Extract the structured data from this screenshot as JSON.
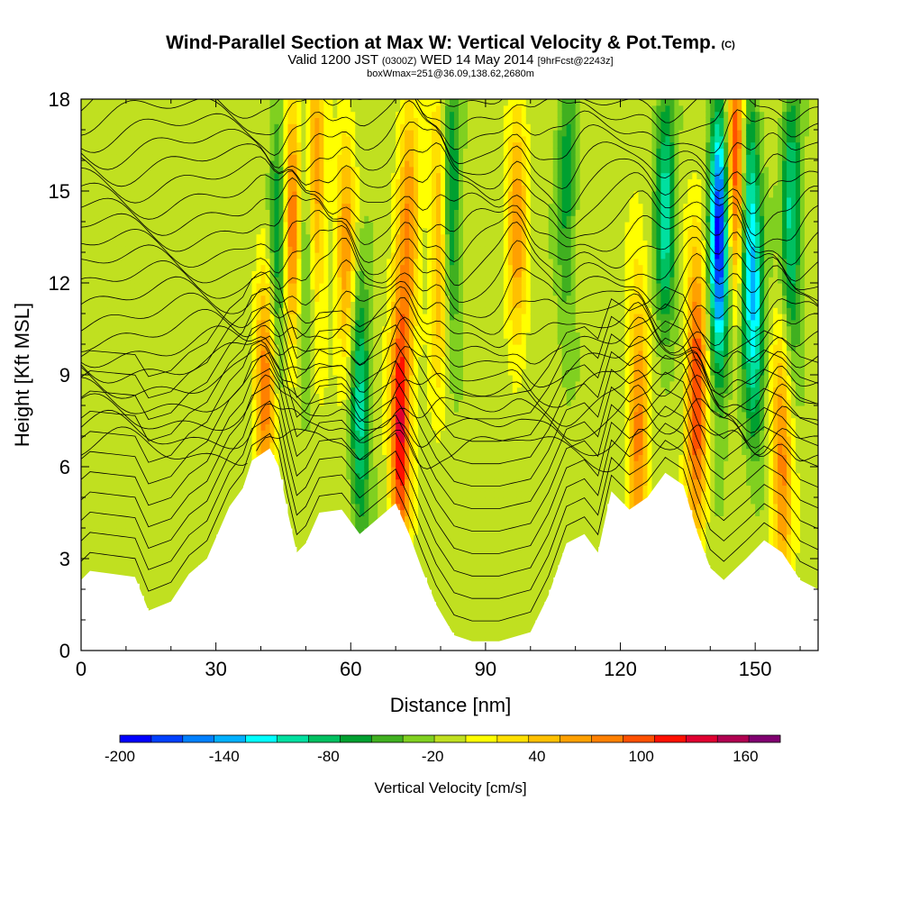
{
  "title": {
    "main": "Wind-Parallel Section at Max W: Vertical Velocity & Pot.Temp.",
    "main_suffix": "(C)",
    "valid_prefix": "Valid 1200 JST",
    "valid_zulu": "(0300Z)",
    "valid_date": "WED 14 May 2014",
    "valid_fcst": "[9hrFcst@2243z]",
    "box_info": "boxWmax=251@36.09,138.62,2680m"
  },
  "chart_data": {
    "type": "heatmap",
    "xlabel": "Distance [nm]",
    "ylabel": "Height [Kft MSL]",
    "xlim": [
      0,
      164
    ],
    "ylim": [
      0,
      18
    ],
    "xticks": [
      0,
      30,
      60,
      90,
      120,
      150
    ],
    "yticks": [
      0,
      3,
      6,
      9,
      12,
      15,
      18
    ],
    "colorbar": {
      "label": "Vertical Velocity [cm/s]",
      "range": [
        -200,
        180
      ],
      "step": 20,
      "tick_labels": [
        "-200",
        "-140",
        "-80",
        "-20",
        "40",
        "100",
        "160"
      ],
      "tick_values": [
        -200,
        -140,
        -80,
        -20,
        40,
        100,
        160
      ],
      "colors": [
        "#0000ff",
        "#0040ff",
        "#0080ff",
        "#00b0ff",
        "#00ffff",
        "#00e0a0",
        "#00c060",
        "#00a030",
        "#40b020",
        "#80d020",
        "#c0e020",
        "#ffff00",
        "#ffe000",
        "#ffc000",
        "#ffa000",
        "#ff8000",
        "#ff5000",
        "#ff1000",
        "#e00030",
        "#b00050",
        "#800070"
      ]
    },
    "terrain_height_kft": [
      {
        "x": 0,
        "h": 2.3
      },
      {
        "x": 2,
        "h": 2.6
      },
      {
        "x": 12,
        "h": 2.4
      },
      {
        "x": 15,
        "h": 1.3
      },
      {
        "x": 20,
        "h": 1.6
      },
      {
        "x": 24,
        "h": 2.5
      },
      {
        "x": 28,
        "h": 3.0
      },
      {
        "x": 33,
        "h": 4.7
      },
      {
        "x": 36,
        "h": 5.3
      },
      {
        "x": 38,
        "h": 6.2
      },
      {
        "x": 42,
        "h": 6.6
      },
      {
        "x": 44,
        "h": 6.0
      },
      {
        "x": 46,
        "h": 4.5
      },
      {
        "x": 48,
        "h": 3.2
      },
      {
        "x": 50,
        "h": 3.5
      },
      {
        "x": 53,
        "h": 4.5
      },
      {
        "x": 58,
        "h": 4.6
      },
      {
        "x": 62,
        "h": 3.8
      },
      {
        "x": 66,
        "h": 4.3
      },
      {
        "x": 70,
        "h": 4.8
      },
      {
        "x": 73,
        "h": 3.8
      },
      {
        "x": 76,
        "h": 2.6
      },
      {
        "x": 79,
        "h": 1.5
      },
      {
        "x": 83,
        "h": 0.5
      },
      {
        "x": 87,
        "h": 0.3
      },
      {
        "x": 93,
        "h": 0.3
      },
      {
        "x": 100,
        "h": 0.6
      },
      {
        "x": 104,
        "h": 1.8
      },
      {
        "x": 108,
        "h": 3.5
      },
      {
        "x": 112,
        "h": 3.8
      },
      {
        "x": 115,
        "h": 3.2
      },
      {
        "x": 118,
        "h": 5.2
      },
      {
        "x": 122,
        "h": 4.6
      },
      {
        "x": 126,
        "h": 5.0
      },
      {
        "x": 130,
        "h": 5.8
      },
      {
        "x": 134,
        "h": 5.4
      },
      {
        "x": 137,
        "h": 3.9
      },
      {
        "x": 140,
        "h": 2.7
      },
      {
        "x": 143,
        "h": 2.3
      },
      {
        "x": 148,
        "h": 3.0
      },
      {
        "x": 152,
        "h": 3.6
      },
      {
        "x": 156,
        "h": 3.2
      },
      {
        "x": 160,
        "h": 2.3
      },
      {
        "x": 164,
        "h": 2.0
      }
    ],
    "updraft_cores": [
      {
        "x": 41,
        "y": 8.5,
        "w_cms": 100
      },
      {
        "x": 47,
        "y": 14.0,
        "w_cms": 120
      },
      {
        "x": 52,
        "y": 15.0,
        "w_cms": 100
      },
      {
        "x": 59,
        "y": 13.0,
        "w_cms": 80
      },
      {
        "x": 71,
        "y": 7.5,
        "w_cms": 160
      },
      {
        "x": 73,
        "y": 14.5,
        "w_cms": 80
      },
      {
        "x": 80,
        "y": 13.5,
        "w_cms": 100
      },
      {
        "x": 97,
        "y": 14.0,
        "w_cms": 80
      },
      {
        "x": 124,
        "y": 7.5,
        "w_cms": 100
      },
      {
        "x": 137,
        "y": 8.5,
        "w_cms": 140
      },
      {
        "x": 146,
        "y": 16.0,
        "w_cms": 170
      },
      {
        "x": 156,
        "y": 6.0,
        "w_cms": 100
      }
    ],
    "downdraft_cores": [
      {
        "x": 44,
        "y": 13.5,
        "w_cms": -80
      },
      {
        "x": 50,
        "y": 13.0,
        "w_cms": -80
      },
      {
        "x": 62,
        "y": 8.0,
        "w_cms": -100
      },
      {
        "x": 82,
        "y": 14.5,
        "w_cms": -100
      },
      {
        "x": 108,
        "y": 15.0,
        "w_cms": -60
      },
      {
        "x": 130,
        "y": 14.5,
        "w_cms": -100
      },
      {
        "x": 142,
        "y": 13.5,
        "w_cms": -200
      },
      {
        "x": 148,
        "y": 14.5,
        "w_cms": -120
      },
      {
        "x": 150,
        "y": 11.0,
        "w_cms": -100
      },
      {
        "x": 158,
        "y": 14.0,
        "w_cms": -100
      }
    ]
  }
}
